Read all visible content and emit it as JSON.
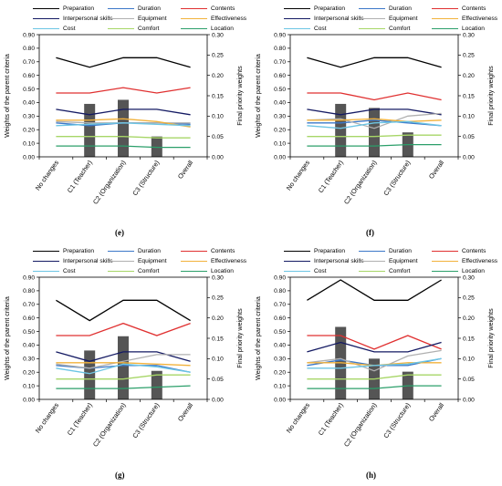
{
  "colors": {
    "Preparation": "#000000",
    "Duration": "#3c78c8",
    "Contents": "#e03030",
    "Interpersonal skills": "#141a63",
    "Equipment": "#b0b0b0",
    "Effectiveness": "#f2b23c",
    "Cost": "#6cc5e4",
    "Comfort": "#a7d667",
    "Location": "#2b9f6a",
    "bar": "#555555"
  },
  "chart_data": [
    {
      "type": "line",
      "panel_label": "(e)",
      "categories": [
        "No changes",
        "C1 (Teacher)",
        "C2 (Organization)",
        "C3 (Structure)",
        "Overall"
      ],
      "ylabel": "Weights of the parent criteria",
      "y2label": "Final priority weights",
      "ylim": [
        0,
        0.9
      ],
      "y2lim": [
        0,
        0.3
      ],
      "yticks": [
        "0.00",
        "0.10",
        "0.20",
        "0.30",
        "0.40",
        "0.50",
        "0.60",
        "0.70",
        "0.80",
        "0.90"
      ],
      "y2ticks": [
        "0.00",
        "0.05",
        "0.10",
        "0.15",
        "0.20",
        "0.25",
        "0.30"
      ],
      "legend": [
        "Preparation",
        "Duration",
        "Contents",
        "Interpersonal skills",
        "Equipment",
        "Effectiveness",
        "Cost",
        "Comfort",
        "Location"
      ],
      "series": [
        {
          "name": "Preparation",
          "values": [
            0.73,
            0.66,
            0.73,
            0.73,
            0.66
          ]
        },
        {
          "name": "Duration",
          "values": [
            0.25,
            0.23,
            0.25,
            0.25,
            0.24
          ]
        },
        {
          "name": "Contents",
          "values": [
            0.47,
            0.47,
            0.51,
            0.47,
            0.51
          ]
        },
        {
          "name": "Interpersonal skills",
          "values": [
            0.35,
            0.31,
            0.35,
            0.35,
            0.31
          ]
        },
        {
          "name": "Equipment",
          "values": [
            0.26,
            0.25,
            0.25,
            0.25,
            0.25
          ]
        },
        {
          "name": "Effectiveness",
          "values": [
            0.27,
            0.27,
            0.28,
            0.26,
            0.22
          ]
        },
        {
          "name": "Cost",
          "values": [
            0.23,
            0.24,
            0.25,
            0.24,
            0.23
          ]
        },
        {
          "name": "Comfort",
          "values": [
            0.15,
            0.15,
            0.15,
            0.14,
            0.14
          ]
        },
        {
          "name": "Location",
          "values": [
            0.08,
            0.08,
            0.08,
            0.07,
            0.07
          ]
        }
      ],
      "bars": [
        null,
        0.13,
        0.14,
        0.05,
        null
      ]
    },
    {
      "type": "line",
      "panel_label": "(f)",
      "categories": [
        "No changes",
        "C1 (Teacher)",
        "C2 (Organization)",
        "C3 (Structure)",
        "Overall"
      ],
      "ylabel": "Weights of the parent criteria",
      "y2label": "Final priority weights",
      "ylim": [
        0,
        0.9
      ],
      "y2lim": [
        0,
        0.3
      ],
      "yticks": [
        "0.00",
        "0.10",
        "0.20",
        "0.30",
        "0.40",
        "0.50",
        "0.60",
        "0.70",
        "0.80",
        "0.90"
      ],
      "y2ticks": [
        "0.00",
        "0.05",
        "0.10",
        "0.15",
        "0.20",
        "0.25",
        "0.30"
      ],
      "legend": [
        "Preparation",
        "Duration",
        "Contents",
        "Interpersonal skills",
        "Equipment",
        "Effectiveness",
        "Cost",
        "Comfort",
        "Location"
      ],
      "series": [
        {
          "name": "Preparation",
          "values": [
            0.73,
            0.66,
            0.73,
            0.73,
            0.66
          ]
        },
        {
          "name": "Duration",
          "values": [
            0.25,
            0.25,
            0.27,
            0.25,
            0.23
          ]
        },
        {
          "name": "Contents",
          "values": [
            0.47,
            0.47,
            0.42,
            0.47,
            0.42
          ]
        },
        {
          "name": "Interpersonal skills",
          "values": [
            0.35,
            0.31,
            0.35,
            0.35,
            0.31
          ]
        },
        {
          "name": "Equipment",
          "values": [
            0.27,
            0.28,
            0.21,
            0.3,
            0.32
          ]
        },
        {
          "name": "Effectiveness",
          "values": [
            0.27,
            0.27,
            0.28,
            0.26,
            0.27
          ]
        },
        {
          "name": "Cost",
          "values": [
            0.23,
            0.21,
            0.25,
            0.26,
            0.23
          ]
        },
        {
          "name": "Comfort",
          "values": [
            0.15,
            0.15,
            0.15,
            0.16,
            0.16
          ]
        },
        {
          "name": "Location",
          "values": [
            0.08,
            0.08,
            0.08,
            0.09,
            0.09
          ]
        }
      ],
      "bars": [
        null,
        0.13,
        0.12,
        0.06,
        null
      ]
    },
    {
      "type": "line",
      "panel_label": "(g)",
      "categories": [
        "No changes",
        "C1 (Teacher)",
        "C2 (Organization)",
        "C3 (Structure)",
        "Overall"
      ],
      "ylabel": "Weights of the parent criteria",
      "y2label": "Final priority weights",
      "ylim": [
        0,
        0.9
      ],
      "y2lim": [
        0,
        0.3
      ],
      "yticks": [
        "0.00",
        "0.10",
        "0.20",
        "0.30",
        "0.40",
        "0.50",
        "0.60",
        "0.70",
        "0.80",
        "0.90"
      ],
      "y2ticks": [
        "0.00",
        "0.05",
        "0.10",
        "0.15",
        "0.20",
        "0.25",
        "0.30"
      ],
      "legend": [
        "Preparation",
        "Duration",
        "Contents",
        "Interpersonal skills",
        "Equipment",
        "Effectiveness",
        "Cost",
        "Comfort",
        "Location"
      ],
      "series": [
        {
          "name": "Preparation",
          "values": [
            0.73,
            0.58,
            0.73,
            0.73,
            0.58
          ]
        },
        {
          "name": "Duration",
          "values": [
            0.25,
            0.23,
            0.25,
            0.25,
            0.2
          ]
        },
        {
          "name": "Contents",
          "values": [
            0.47,
            0.47,
            0.56,
            0.47,
            0.56
          ]
        },
        {
          "name": "Interpersonal skills",
          "values": [
            0.35,
            0.28,
            0.35,
            0.35,
            0.28
          ]
        },
        {
          "name": "Equipment",
          "values": [
            0.26,
            0.23,
            0.28,
            0.33,
            0.33
          ]
        },
        {
          "name": "Effectiveness",
          "values": [
            0.27,
            0.27,
            0.27,
            0.26,
            0.25
          ]
        },
        {
          "name": "Cost",
          "values": [
            0.23,
            0.19,
            0.26,
            0.24,
            0.2
          ]
        },
        {
          "name": "Comfort",
          "values": [
            0.15,
            0.15,
            0.15,
            0.18,
            0.18
          ]
        },
        {
          "name": "Location",
          "values": [
            0.08,
            0.08,
            0.08,
            0.09,
            0.1
          ]
        }
      ],
      "bars": [
        null,
        0.12,
        0.155,
        0.07,
        null
      ]
    },
    {
      "type": "line",
      "panel_label": "(h)",
      "categories": [
        "No changes",
        "C1 (Teacher)",
        "C2 (Organization)",
        "C3 (Structure)",
        "Overall"
      ],
      "ylabel": "Weights of the parent criteria",
      "y2label": "Final priority weights",
      "ylim": [
        0,
        0.9
      ],
      "y2lim": [
        0,
        0.3
      ],
      "yticks": [
        "0.00",
        "0.10",
        "0.20",
        "0.30",
        "0.40",
        "0.50",
        "0.60",
        "0.70",
        "0.80",
        "0.90"
      ],
      "y2ticks": [
        "0.00",
        "0.05",
        "0.10",
        "0.15",
        "0.20",
        "0.25",
        "0.30"
      ],
      "legend": [
        "Preparation",
        "Duration",
        "Contents",
        "Interpersonal skills",
        "Equipment",
        "Effectiveness",
        "Cost",
        "Comfort",
        "Location"
      ],
      "series": [
        {
          "name": "Preparation",
          "values": [
            0.73,
            0.88,
            0.73,
            0.73,
            0.88
          ]
        },
        {
          "name": "Duration",
          "values": [
            0.25,
            0.29,
            0.25,
            0.25,
            0.3
          ]
        },
        {
          "name": "Contents",
          "values": [
            0.47,
            0.47,
            0.37,
            0.47,
            0.37
          ]
        },
        {
          "name": "Interpersonal skills",
          "values": [
            0.35,
            0.42,
            0.35,
            0.35,
            0.42
          ]
        },
        {
          "name": "Equipment",
          "values": [
            0.27,
            0.3,
            0.21,
            0.32,
            0.36
          ]
        },
        {
          "name": "Effectiveness",
          "values": [
            0.27,
            0.27,
            0.25,
            0.27,
            0.27
          ]
        },
        {
          "name": "Cost",
          "values": [
            0.23,
            0.23,
            0.25,
            0.26,
            0.3
          ]
        },
        {
          "name": "Comfort",
          "values": [
            0.15,
            0.15,
            0.15,
            0.18,
            0.18
          ]
        },
        {
          "name": "Location",
          "values": [
            0.08,
            0.08,
            0.08,
            0.1,
            0.1
          ]
        }
      ],
      "bars": [
        null,
        0.178,
        0.1,
        0.068,
        null
      ]
    }
  ]
}
